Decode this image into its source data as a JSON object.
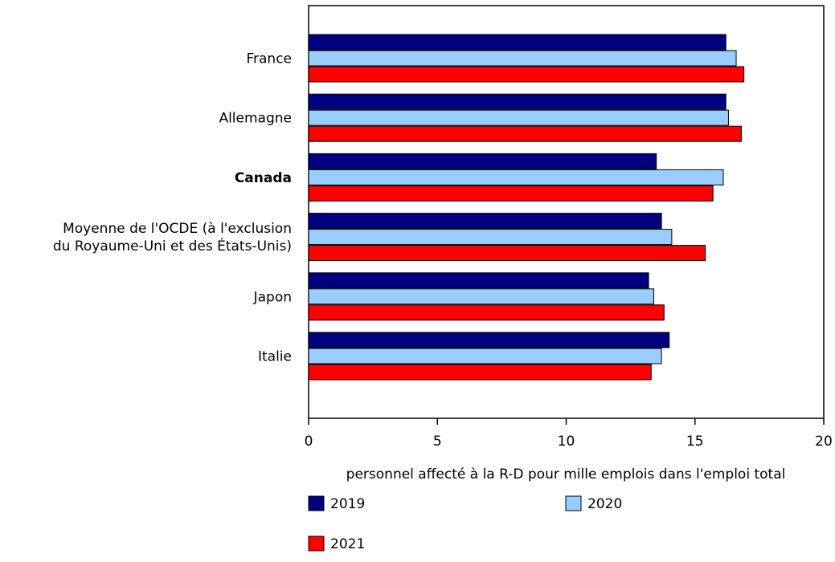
{
  "chart_data": {
    "type": "bar",
    "orientation": "horizontal",
    "categories": [
      "France",
      "Allemagne",
      "Canada",
      "Moyenne de l'OCDE (à l'exclusion du Royaume-Uni et des États-Unis)",
      "Japon",
      "Italie"
    ],
    "category_label_lines": [
      [
        "France"
      ],
      [
        "Allemagne"
      ],
      [
        "Canada"
      ],
      [
        "Moyenne de l'OCDE (à l'exclusion",
        "du Royaume-Uni et des États-Unis)"
      ],
      [
        "Japon"
      ],
      [
        "Italie"
      ]
    ],
    "highlighted_category": "Canada",
    "series": [
      {
        "name": "2019",
        "color": "#000080",
        "values": [
          16.2,
          16.2,
          13.5,
          13.7,
          13.2,
          14.0
        ]
      },
      {
        "name": "2020",
        "color": "#99ccff",
        "values": [
          16.6,
          16.3,
          16.1,
          14.1,
          13.4,
          13.7
        ]
      },
      {
        "name": "2021",
        "color": "#ff0000",
        "values": [
          16.9,
          16.8,
          15.7,
          15.4,
          13.8,
          13.3
        ]
      }
    ],
    "xlabel": "personnel affecté à la R-D pour mille emplois dans l'emploi total",
    "ylabel": "",
    "xlim": [
      0,
      20
    ],
    "xticks": [
      0,
      5,
      10,
      15,
      20
    ],
    "grid": false,
    "legend_position": "bottom"
  }
}
